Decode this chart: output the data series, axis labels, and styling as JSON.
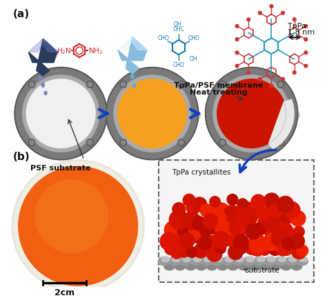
{
  "bg_color": "#ffffff",
  "label_a": "(a)",
  "label_b": "(b)",
  "label_psf": "PSF substrate",
  "label_tppa_psf": "TpPa/PSF membrane",
  "label_heat": "Heat treating",
  "label_tppa_line1": "TpPa",
  "label_tppa_line2": "1.8 nm",
  "label_crystallites": "TpPa crystallites",
  "label_substrate": "substrate",
  "label_scale": "2cm",
  "disk1_color": "#f0f0f0",
  "disk2_color": "#f5a020",
  "disk3_color": "#cc1500",
  "frame_color": "#7a7a7a",
  "frame_dark": "#555555",
  "frame_light": "#aaaaaa",
  "arrow_color": "#1040bb",
  "text_color": "#111111",
  "fig_width": 4.74,
  "fig_height": 4.32,
  "dpi": 100,
  "vial1_color": "#2a3a5a",
  "vial1_highlight": "#5566aa",
  "vial2_color": "#88bbdd",
  "vial2_highlight": "#cce8ff",
  "drop1_color": "#7788bb",
  "drop2_color": "#66aacc",
  "chem1_color": "#cc2222",
  "chem2_color": "#1177aa",
  "cof_core_color": "#2299bb",
  "cof_branch_color": "#cc3333"
}
